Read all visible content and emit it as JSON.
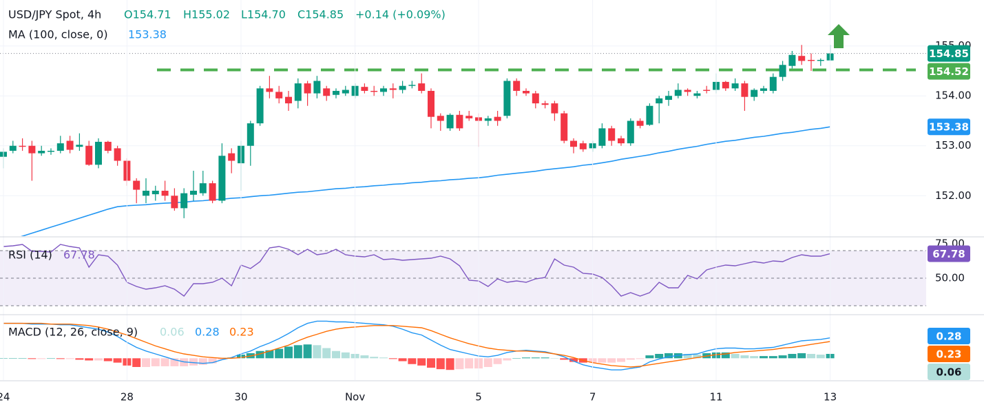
{
  "chart_data": [
    {
      "type": "candlestick",
      "title": "USD/JPY Spot, 4h",
      "header": [
        "O154.71",
        "H155.02",
        "L154.70",
        "C154.85",
        "+0.14 (+0.09%)"
      ],
      "categories": [
        "24",
        null,
        null,
        null,
        null,
        null,
        null,
        null,
        null,
        null,
        null,
        null,
        null,
        "28",
        null,
        null,
        null,
        null,
        null,
        null,
        null,
        null,
        null,
        null,
        null,
        "30",
        null,
        null,
        null,
        null,
        null,
        null,
        null,
        null,
        null,
        null,
        null,
        "Nov",
        null,
        null,
        null,
        null,
        null,
        null,
        null,
        null,
        null,
        null,
        null,
        null,
        "5",
        null,
        null,
        null,
        null,
        null,
        null,
        null,
        null,
        null,
        null,
        null,
        "7",
        null,
        null,
        null,
        null,
        null,
        null,
        null,
        null,
        null,
        null,
        null,
        null,
        "11",
        null,
        null,
        null,
        null,
        null,
        null,
        null,
        null,
        null,
        null,
        null,
        "13"
      ],
      "open": [
        152.78,
        152.9,
        153.0,
        153.0,
        152.85,
        152.88,
        152.9,
        153.1,
        152.98,
        153.0,
        152.62,
        153.08,
        152.95,
        152.7,
        152.3,
        152.0,
        152.03,
        152.1,
        152.0,
        151.75,
        152.02,
        152.05,
        152.25,
        151.9,
        152.85,
        152.65,
        153.0,
        153.45,
        154.15,
        154.08,
        153.98,
        153.9,
        154.25,
        154.05,
        154.15,
        154.02,
        154.05,
        154.0,
        154.18,
        154.1,
        154.08,
        154.15,
        154.12,
        154.2,
        154.25,
        154.1,
        153.6,
        153.35,
        153.62,
        153.6,
        153.57,
        153.5,
        153.58,
        153.6,
        154.3,
        154.1,
        154.05,
        153.85,
        153.85,
        153.65,
        153.1,
        153.05,
        152.95,
        153.0,
        153.35,
        153.15,
        153.05,
        153.5,
        153.42,
        153.85,
        153.92,
        154.0,
        154.12,
        154.0,
        154.12,
        154.12,
        154.28,
        154.15,
        154.25,
        153.98,
        154.1,
        154.1,
        154.38,
        154.6,
        154.8,
        154.72,
        154.7,
        154.71
      ],
      "high": [
        152.95,
        153.1,
        153.15,
        153.1,
        153.0,
        152.95,
        153.2,
        153.2,
        153.25,
        153.1,
        153.15,
        153.1,
        153.0,
        152.75,
        152.35,
        152.35,
        152.2,
        152.3,
        152.15,
        152.15,
        152.5,
        152.5,
        152.3,
        153.05,
        152.95,
        153.1,
        153.5,
        154.2,
        154.4,
        154.2,
        154.1,
        154.35,
        154.3,
        154.4,
        154.2,
        154.15,
        154.2,
        154.25,
        154.25,
        154.2,
        154.2,
        154.25,
        154.3,
        154.3,
        154.45,
        154.15,
        153.65,
        153.65,
        153.7,
        153.7,
        153.65,
        153.6,
        153.7,
        154.35,
        154.35,
        154.15,
        154.1,
        153.9,
        153.9,
        153.7,
        153.15,
        153.1,
        153.1,
        153.45,
        153.4,
        153.2,
        153.55,
        153.55,
        153.85,
        154.0,
        154.1,
        154.25,
        154.15,
        154.1,
        154.2,
        154.45,
        154.3,
        154.35,
        154.3,
        154.15,
        154.2,
        154.45,
        154.7,
        154.9,
        155.02,
        154.85,
        154.75,
        155.02
      ],
      "low": [
        152.55,
        152.85,
        152.9,
        152.3,
        152.8,
        152.82,
        152.85,
        152.85,
        152.9,
        152.6,
        152.55,
        152.85,
        152.6,
        152.2,
        151.85,
        151.85,
        151.9,
        151.9,
        151.7,
        151.55,
        151.9,
        152.0,
        151.85,
        151.85,
        152.45,
        152.1,
        152.6,
        153.4,
        153.95,
        153.85,
        153.7,
        153.75,
        153.8,
        153.95,
        153.9,
        153.95,
        154.0,
        153.95,
        154.05,
        154.0,
        154.0,
        153.95,
        154.05,
        154.15,
        154.05,
        153.35,
        153.3,
        153.3,
        153.3,
        153.5,
        152.98,
        153.4,
        153.4,
        153.55,
        154.0,
        154.0,
        153.75,
        153.75,
        153.5,
        153.05,
        152.85,
        152.88,
        152.88,
        152.95,
        153.0,
        153.0,
        153.0,
        153.35,
        153.4,
        153.45,
        153.8,
        153.95,
        154.0,
        153.95,
        154.05,
        154.05,
        154.1,
        154.1,
        153.7,
        153.9,
        154.05,
        154.05,
        154.3,
        154.55,
        154.62,
        154.5,
        154.6,
        154.7
      ],
      "close": [
        152.88,
        153.0,
        152.98,
        152.85,
        152.9,
        152.9,
        153.05,
        152.92,
        153.02,
        152.62,
        153.08,
        152.9,
        152.7,
        152.3,
        152.12,
        152.1,
        152.1,
        152.0,
        151.75,
        152.05,
        152.1,
        152.25,
        151.9,
        152.8,
        152.7,
        153.0,
        153.45,
        154.15,
        154.08,
        153.95,
        153.85,
        154.25,
        154.05,
        154.3,
        154.0,
        154.1,
        154.12,
        154.2,
        154.1,
        154.08,
        154.15,
        154.12,
        154.2,
        154.22,
        154.1,
        153.58,
        153.5,
        153.62,
        153.35,
        153.55,
        153.5,
        153.55,
        153.5,
        154.3,
        154.1,
        154.05,
        153.85,
        153.82,
        153.65,
        153.1,
        152.98,
        152.93,
        153.05,
        153.35,
        153.1,
        153.05,
        153.5,
        153.4,
        153.8,
        153.95,
        154.0,
        154.12,
        154.08,
        154.05,
        154.1,
        154.28,
        154.15,
        154.25,
        153.98,
        154.12,
        154.15,
        154.38,
        154.62,
        154.82,
        154.7,
        154.7,
        154.72,
        154.85
      ],
      "up_color": "#089981",
      "down_color": "#f23645",
      "series": [
        {
          "name": "MA (100, close, 0)",
          "color": "#2196f3",
          "values": [
            151.07,
            151.13,
            151.19,
            151.25,
            151.31,
            151.37,
            151.43,
            151.49,
            151.55,
            151.61,
            151.67,
            151.73,
            151.78,
            151.8,
            151.81,
            151.82,
            151.84,
            151.85,
            151.86,
            151.87,
            151.89,
            151.9,
            151.92,
            151.93,
            151.95,
            151.96,
            151.98,
            152.0,
            152.01,
            152.03,
            152.05,
            152.07,
            152.08,
            152.1,
            152.12,
            152.14,
            152.15,
            152.17,
            152.18,
            152.2,
            152.21,
            152.23,
            152.24,
            152.26,
            152.27,
            152.29,
            152.3,
            152.32,
            152.33,
            152.35,
            152.36,
            152.38,
            152.41,
            152.43,
            152.45,
            152.47,
            152.49,
            152.52,
            152.54,
            152.56,
            152.58,
            152.61,
            152.63,
            152.66,
            152.69,
            152.73,
            152.76,
            152.79,
            152.82,
            152.86,
            152.89,
            152.93,
            152.96,
            152.99,
            153.03,
            153.06,
            153.09,
            153.11,
            153.14,
            153.17,
            153.19,
            153.22,
            153.25,
            153.27,
            153.3,
            153.33,
            153.35,
            153.38
          ]
        }
      ],
      "resistance": {
        "value": 154.52,
        "color": "#4caf50"
      },
      "ylim": [
        151.19,
        155.92
      ],
      "yticks": [
        {
          "value": 155,
          "label": "155.00"
        },
        {
          "value": 154,
          "label": "154.00"
        },
        {
          "value": 153,
          "label": "153.00"
        },
        {
          "value": 152,
          "label": "152.00"
        }
      ],
      "grid": true
    },
    {
      "type": "line",
      "series": [
        {
          "name": "RSI (14)",
          "color": "#7e57c2",
          "values": [
            73,
            73.5,
            74.5,
            69.5,
            69.5,
            69,
            74.5,
            73,
            72,
            58,
            67,
            66,
            59.5,
            47,
            44,
            42,
            43,
            44.5,
            42,
            37,
            46,
            46,
            47,
            50,
            44.5,
            59.5,
            57,
            62,
            72,
            73,
            71,
            67,
            71,
            67,
            68,
            71,
            67,
            66,
            65.5,
            67,
            63.5,
            64,
            63,
            63.5,
            64,
            64.5,
            66,
            64,
            59,
            48.5,
            48,
            44,
            49.5,
            47,
            48,
            47,
            49.5,
            50.5,
            64,
            59.5,
            58,
            53.5,
            53,
            50.5,
            44.5,
            37,
            39.5,
            37,
            39.5,
            47,
            43,
            43,
            52,
            49.5,
            56,
            58,
            59.5,
            59,
            60.5,
            62,
            61,
            62.5,
            62,
            65,
            67,
            66,
            66,
            67.78
          ]
        }
      ],
      "levels": [
        70,
        50,
        30
      ],
      "band": [
        30,
        70
      ],
      "band_color": "#7e57c2",
      "ylim": [
        24,
        79.5
      ],
      "yticks": [
        {
          "value": 75,
          "label": "75.00"
        },
        {
          "value": 50,
          "label": "50.00"
        }
      ]
    },
    {
      "type": "macd",
      "title": "MACD (12, 26, close, 9)",
      "histogram": {
        "colors": [
          "#26a69a",
          "#b2dfdb",
          "#ff5252",
          "#ffcdd2"
        ],
        "values": [
          0,
          0,
          0,
          -0.01,
          -0.01,
          0,
          -0.01,
          -0.01,
          -0.02,
          -0.03,
          -0.03,
          -0.04,
          -0.06,
          -0.1,
          -0.12,
          -0.12,
          -0.11,
          -0.11,
          -0.11,
          -0.11,
          -0.1,
          -0.09,
          -0.07,
          -0.02,
          0.01,
          0.05,
          0.07,
          0.1,
          0.11,
          0.13,
          0.16,
          0.18,
          0.19,
          0.18,
          0.14,
          0.1,
          0.08,
          0.06,
          0.04,
          0.02,
          0.01,
          -0.01,
          -0.04,
          -0.08,
          -0.1,
          -0.13,
          -0.15,
          -0.16,
          -0.15,
          -0.14,
          -0.14,
          -0.12,
          -0.08,
          -0.03,
          0,
          0.01,
          0.01,
          0.01,
          0,
          -0.02,
          -0.05,
          -0.06,
          -0.06,
          -0.06,
          -0.06,
          -0.05,
          -0.02,
          -0.01,
          0.04,
          0.06,
          0.07,
          0.07,
          0.06,
          0.05,
          0.07,
          0.08,
          0.08,
          0.06,
          0.04,
          0.03,
          0.03,
          0.03,
          0.04,
          0.06,
          0.07,
          0.06,
          0.05,
          0.06
        ]
      },
      "macd": {
        "color": "#2196f3",
        "values": [
          0.48,
          0.48,
          0.48,
          0.47,
          0.47,
          0.47,
          0.46,
          0.46,
          0.44,
          0.42,
          0.4,
          0.36,
          0.3,
          0.22,
          0.15,
          0.1,
          0.06,
          0.02,
          -0.02,
          -0.05,
          -0.06,
          -0.07,
          -0.06,
          -0.02,
          0.01,
          0.06,
          0.1,
          0.16,
          0.21,
          0.27,
          0.34,
          0.42,
          0.48,
          0.51,
          0.51,
          0.5,
          0.5,
          0.49,
          0.48,
          0.47,
          0.46,
          0.44,
          0.4,
          0.35,
          0.32,
          0.25,
          0.18,
          0.12,
          0.09,
          0.06,
          0.03,
          0.02,
          0.04,
          0.08,
          0.1,
          0.11,
          0.1,
          0.09,
          0.06,
          0.02,
          -0.04,
          -0.09,
          -0.12,
          -0.14,
          -0.16,
          -0.16,
          -0.14,
          -0.12,
          -0.05,
          -0.01,
          0.02,
          0.04,
          0.05,
          0.06,
          0.1,
          0.13,
          0.14,
          0.14,
          0.13,
          0.13,
          0.14,
          0.15,
          0.18,
          0.21,
          0.24,
          0.25,
          0.26,
          0.28
        ]
      },
      "signal": {
        "color": "#ff6d00",
        "values": [
          0.48,
          0.48,
          0.48,
          0.48,
          0.48,
          0.47,
          0.47,
          0.47,
          0.46,
          0.45,
          0.43,
          0.4,
          0.36,
          0.32,
          0.27,
          0.22,
          0.17,
          0.13,
          0.09,
          0.06,
          0.04,
          0.02,
          0.01,
          0,
          0,
          0.01,
          0.03,
          0.06,
          0.1,
          0.14,
          0.18,
          0.24,
          0.29,
          0.33,
          0.37,
          0.4,
          0.42,
          0.43,
          0.44,
          0.45,
          0.45,
          0.45,
          0.44,
          0.43,
          0.42,
          0.38,
          0.33,
          0.28,
          0.24,
          0.2,
          0.17,
          0.14,
          0.12,
          0.11,
          0.1,
          0.1,
          0.09,
          0.08,
          0.06,
          0.04,
          0.01,
          -0.03,
          -0.06,
          -0.08,
          -0.1,
          -0.11,
          -0.12,
          -0.11,
          -0.09,
          -0.07,
          -0.05,
          -0.03,
          -0.01,
          0.01,
          0.03,
          0.05,
          0.06,
          0.08,
          0.09,
          0.1,
          0.11,
          0.12,
          0.14,
          0.15,
          0.17,
          0.19,
          0.21,
          0.23
        ]
      },
      "ylim": [
        -0.3,
        0.59
      ]
    }
  ]
}
